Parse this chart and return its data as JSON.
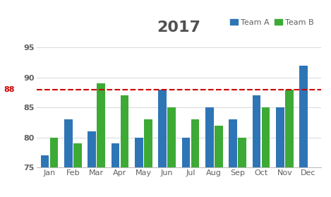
{
  "title": "2017",
  "categories": [
    "Jan",
    "Feb",
    "Mar",
    "Apr",
    "May",
    "Jun",
    "Jul",
    "Aug",
    "Sep",
    "Oct",
    "Nov",
    "Dec"
  ],
  "team_a": [
    77,
    83,
    81,
    79,
    80,
    88,
    80,
    85,
    83,
    87,
    85,
    92
  ],
  "team_b": [
    80,
    79,
    89,
    87,
    83,
    85,
    83,
    82,
    80,
    85,
    88,
    0
  ],
  "color_a": "#2E75B6",
  "color_b": "#3DAA35",
  "hline_value": 88,
  "hline_color": "#CC0000",
  "ylim": [
    75,
    97
  ],
  "yticks": [
    75,
    80,
    85,
    90,
    95
  ],
  "ytick_labels": [
    "75",
    "80",
    "85",
    "90",
    "95"
  ],
  "hline_yaxis_label": "88",
  "background_color": "#FFFFFF",
  "border_color": "#BBBBBB",
  "title_color": "#505050",
  "title_fontsize": 16,
  "tick_color": "#606060",
  "tick_fontsize": 8,
  "legend_a_color": "#2E75B6",
  "legend_b_color": "#3DAA35",
  "legend_fontsize": 8,
  "bar_width": 0.35,
  "bar_gap": 0.04
}
